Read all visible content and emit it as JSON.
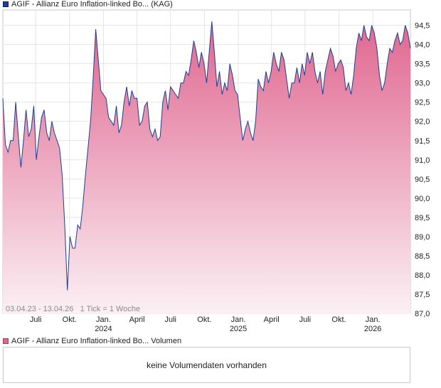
{
  "price_legend": {
    "title": "AGIF - Allianz Euro Inflation-linked Bo... (KAG)",
    "swatch_color": "#1f3f8f"
  },
  "volume_legend": {
    "title": "AGIF - Allianz Euro Inflation-linked Bo... Volumen",
    "swatch_color": "#d86a8a"
  },
  "range_info": "03.04.23 - 13.04.26   1 Tick = 1 Woche",
  "volume_message": "keine Volumendaten vorhanden",
  "chart_data": {
    "type": "area",
    "title": "AGIF - Allianz Euro Inflation-linked Bo... (KAG)",
    "x_range": [
      "2023-04-03",
      "2026-04-13"
    ],
    "tick_interval": "1 Woche",
    "ylim": [
      87.0,
      94.9
    ],
    "y_ticks": [
      "87,0",
      "87,5",
      "88,0",
      "88,5",
      "89,0",
      "89,5",
      "90,0",
      "90,5",
      "91,0",
      "91,5",
      "92,0",
      "92,5",
      "93,0",
      "93,5",
      "94,0",
      "94,5"
    ],
    "y_tick_values": [
      87.0,
      87.5,
      88.0,
      88.5,
      89.0,
      89.5,
      90.0,
      90.5,
      91.0,
      91.5,
      92.0,
      92.5,
      93.0,
      93.5,
      94.0,
      94.5
    ],
    "x_ticks": [
      {
        "label": "Juli",
        "date": "2023-07-01"
      },
      {
        "label": "Okt.",
        "date": "2023-10-01"
      },
      {
        "label": "Jan.",
        "year": "2024",
        "date": "2024-01-01"
      },
      {
        "label": "April",
        "date": "2024-04-01"
      },
      {
        "label": "Juli",
        "date": "2024-07-01"
      },
      {
        "label": "Okt.",
        "date": "2024-10-01"
      },
      {
        "label": "Jan.",
        "year": "2025",
        "date": "2025-01-01"
      },
      {
        "label": "April",
        "date": "2025-04-01"
      },
      {
        "label": "Juli",
        "date": "2025-07-01"
      },
      {
        "label": "Okt.",
        "date": "2025-10-01"
      },
      {
        "label": "Jan.",
        "year": "2026",
        "date": "2026-01-01"
      }
    ],
    "grid": true,
    "line_color": "#1f3f8f",
    "fill_color_top": "#e06690",
    "fill_color_bottom": "#fbf0f4",
    "series": [
      {
        "points": [
          [
            "2023-04-03",
            92.6
          ],
          [
            "2023-04-10",
            91.4
          ],
          [
            "2023-04-17",
            91.2
          ],
          [
            "2023-04-24",
            91.5
          ],
          [
            "2023-05-01",
            91.5
          ],
          [
            "2023-05-08",
            92.5
          ],
          [
            "2023-05-15",
            91.6
          ],
          [
            "2023-05-22",
            90.8
          ],
          [
            "2023-05-29",
            91.5
          ],
          [
            "2023-06-05",
            92.3
          ],
          [
            "2023-06-12",
            91.6
          ],
          [
            "2023-06-19",
            91.8
          ],
          [
            "2023-06-26",
            92.4
          ],
          [
            "2023-07-03",
            91.0
          ],
          [
            "2023-07-10",
            91.6
          ],
          [
            "2023-07-17",
            92.1
          ],
          [
            "2023-07-24",
            92.3
          ],
          [
            "2023-07-31",
            91.7
          ],
          [
            "2023-08-07",
            91.5
          ],
          [
            "2023-08-14",
            92.0
          ],
          [
            "2023-08-21",
            91.7
          ],
          [
            "2023-08-28",
            91.5
          ],
          [
            "2023-09-04",
            91.3
          ],
          [
            "2023-09-11",
            90.6
          ],
          [
            "2023-09-18",
            89.3
          ],
          [
            "2023-09-25",
            87.6
          ],
          [
            "2023-10-02",
            89.0
          ],
          [
            "2023-10-09",
            88.7
          ],
          [
            "2023-10-16",
            88.7
          ],
          [
            "2023-10-23",
            89.3
          ],
          [
            "2023-10-30",
            89.2
          ],
          [
            "2023-11-06",
            89.8
          ],
          [
            "2023-11-13",
            90.6
          ],
          [
            "2023-11-20",
            91.3
          ],
          [
            "2023-11-27",
            92.0
          ],
          [
            "2023-12-04",
            93.1
          ],
          [
            "2023-12-11",
            94.4
          ],
          [
            "2023-12-18",
            93.6
          ],
          [
            "2023-12-25",
            92.8
          ],
          [
            "2024-01-01",
            92.7
          ],
          [
            "2024-01-08",
            92.6
          ],
          [
            "2024-01-15",
            92.1
          ],
          [
            "2024-01-22",
            92.0
          ],
          [
            "2024-01-29",
            91.9
          ],
          [
            "2024-02-05",
            92.4
          ],
          [
            "2024-02-12",
            91.7
          ],
          [
            "2024-02-19",
            91.9
          ],
          [
            "2024-02-26",
            92.5
          ],
          [
            "2024-03-04",
            92.9
          ],
          [
            "2024-03-11",
            92.4
          ],
          [
            "2024-03-18",
            92.8
          ],
          [
            "2024-03-25",
            92.6
          ],
          [
            "2024-04-01",
            92.6
          ],
          [
            "2024-04-08",
            91.9
          ],
          [
            "2024-04-15",
            92.0
          ],
          [
            "2024-04-22",
            92.4
          ],
          [
            "2024-04-29",
            92.5
          ],
          [
            "2024-05-06",
            91.8
          ],
          [
            "2024-05-13",
            91.6
          ],
          [
            "2024-05-20",
            91.8
          ],
          [
            "2024-05-27",
            91.5
          ],
          [
            "2024-06-03",
            91.6
          ],
          [
            "2024-06-10",
            92.5
          ],
          [
            "2024-06-17",
            92.8
          ],
          [
            "2024-06-24",
            92.3
          ],
          [
            "2024-07-01",
            92.9
          ],
          [
            "2024-07-08",
            92.8
          ],
          [
            "2024-07-15",
            92.7
          ],
          [
            "2024-07-22",
            92.6
          ],
          [
            "2024-07-29",
            93.0
          ],
          [
            "2024-08-05",
            93.0
          ],
          [
            "2024-08-12",
            93.3
          ],
          [
            "2024-08-19",
            93.2
          ],
          [
            "2024-08-26",
            93.6
          ],
          [
            "2024-09-02",
            94.1
          ],
          [
            "2024-09-09",
            93.8
          ],
          [
            "2024-09-16",
            93.4
          ],
          [
            "2024-09-23",
            93.8
          ],
          [
            "2024-09-30",
            93.5
          ],
          [
            "2024-10-07",
            93.0
          ],
          [
            "2024-10-14",
            93.8
          ],
          [
            "2024-10-21",
            94.6
          ],
          [
            "2024-10-28",
            93.8
          ],
          [
            "2024-11-04",
            92.9
          ],
          [
            "2024-11-11",
            93.3
          ],
          [
            "2024-11-18",
            92.7
          ],
          [
            "2024-11-25",
            93.0
          ],
          [
            "2024-12-02",
            92.8
          ],
          [
            "2024-12-09",
            93.5
          ],
          [
            "2024-12-16",
            93.2
          ],
          [
            "2024-12-23",
            92.8
          ],
          [
            "2024-12-30",
            92.7
          ],
          [
            "2025-01-06",
            92.1
          ],
          [
            "2025-01-13",
            91.5
          ],
          [
            "2025-01-20",
            91.8
          ],
          [
            "2025-01-27",
            92.0
          ],
          [
            "2025-02-03",
            91.7
          ],
          [
            "2025-02-10",
            91.5
          ],
          [
            "2025-02-17",
            92.0
          ],
          [
            "2025-02-24",
            93.1
          ],
          [
            "2025-03-03",
            92.9
          ],
          [
            "2025-03-10",
            92.8
          ],
          [
            "2025-03-17",
            93.3
          ],
          [
            "2025-03-24",
            93.0
          ],
          [
            "2025-03-31",
            93.3
          ],
          [
            "2025-04-07",
            93.8
          ],
          [
            "2025-04-14",
            93.5
          ],
          [
            "2025-04-21",
            93.3
          ],
          [
            "2025-04-28",
            93.8
          ],
          [
            "2025-05-05",
            93.6
          ],
          [
            "2025-05-12",
            93.1
          ],
          [
            "2025-05-19",
            92.6
          ],
          [
            "2025-05-26",
            93.0
          ],
          [
            "2025-06-02",
            93.0
          ],
          [
            "2025-06-09",
            93.4
          ],
          [
            "2025-06-16",
            93.0
          ],
          [
            "2025-06-23",
            93.5
          ],
          [
            "2025-06-30",
            93.2
          ],
          [
            "2025-07-07",
            93.8
          ],
          [
            "2025-07-14",
            93.5
          ],
          [
            "2025-07-21",
            93.8
          ],
          [
            "2025-07-28",
            93.3
          ],
          [
            "2025-08-04",
            93.0
          ],
          [
            "2025-08-11",
            93.3
          ],
          [
            "2025-08-18",
            92.7
          ],
          [
            "2025-08-25",
            93.3
          ],
          [
            "2025-09-01",
            93.6
          ],
          [
            "2025-09-08",
            93.9
          ],
          [
            "2025-09-15",
            93.7
          ],
          [
            "2025-09-22",
            93.3
          ],
          [
            "2025-09-29",
            93.5
          ],
          [
            "2025-10-06",
            93.6
          ],
          [
            "2025-10-13",
            93.4
          ],
          [
            "2025-10-20",
            92.8
          ],
          [
            "2025-10-27",
            93.0
          ],
          [
            "2025-11-03",
            92.7
          ],
          [
            "2025-11-10",
            93.2
          ],
          [
            "2025-11-17",
            93.9
          ],
          [
            "2025-11-24",
            94.3
          ],
          [
            "2025-12-01",
            94.1
          ],
          [
            "2025-12-08",
            94.5
          ],
          [
            "2025-12-15",
            94.2
          ],
          [
            "2025-12-22",
            94.1
          ],
          [
            "2025-12-29",
            94.5
          ],
          [
            "2026-01-05",
            94.3
          ],
          [
            "2026-01-12",
            93.9
          ],
          [
            "2026-01-19",
            93.2
          ],
          [
            "2026-01-26",
            92.8
          ],
          [
            "2026-02-02",
            93.0
          ],
          [
            "2026-02-09",
            93.5
          ],
          [
            "2026-02-16",
            93.9
          ],
          [
            "2026-02-23",
            93.8
          ],
          [
            "2026-03-02",
            94.1
          ],
          [
            "2026-03-09",
            94.3
          ],
          [
            "2026-03-16",
            94.0
          ],
          [
            "2026-03-23",
            94.1
          ],
          [
            "2026-03-30",
            94.5
          ],
          [
            "2026-04-06",
            94.3
          ],
          [
            "2026-04-13",
            93.9
          ]
        ]
      }
    ]
  }
}
